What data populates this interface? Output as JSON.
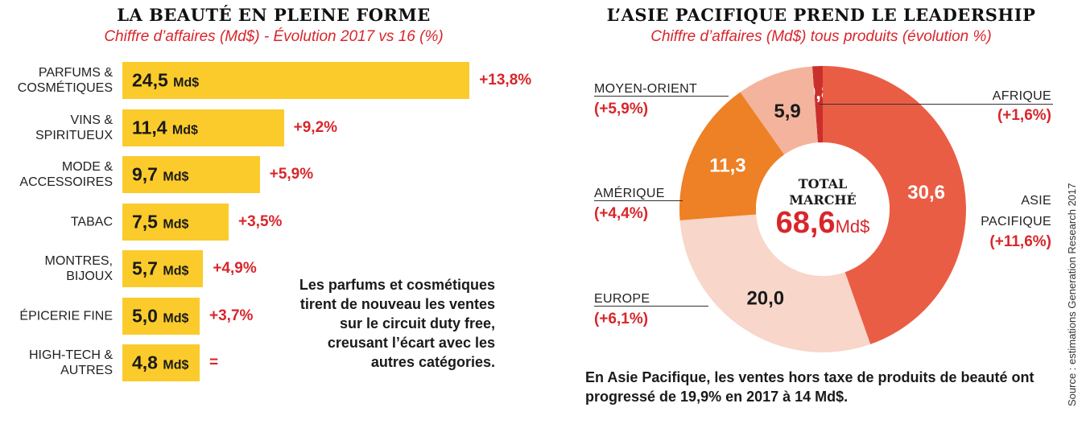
{
  "left": {
    "title": "LA BEAUTÉ EN PLEINE FORME",
    "subtitle": "Chiffre d’affaires (Md$) - Évolution 2017 vs 16 (%)",
    "note": "Les parfums et cosmétiques tirent de nouveau les ventes sur le circuit duty free, creusant l’écart avec les autres catégories."
  },
  "right": {
    "title": "L’ASIE PACIFIQUE PREND LE LEADERSHIP",
    "subtitle": "Chiffre d’affaires (Md$) tous produits (évolution %)",
    "center_line1": "TOTAL",
    "center_line2": "MARCHÉ",
    "center_value": "68,6",
    "center_unit": "Md$",
    "note": "En Asie Pacifique, les ventes hors taxe de produits de beauté ont progressé de 19,9% en 2017 à 14 Md$."
  },
  "source": "Source : estimations Generation Research 2017",
  "colors": {
    "bar": "#fbcb2c",
    "accent_red": "#d8262b"
  },
  "chart_data": [
    {
      "type": "bar",
      "orientation": "horizontal",
      "title": "LA BEAUTÉ EN PLEINE FORME",
      "subtitle": "Chiffre d’affaires (Md$) - Évolution 2017 vs 16 (%)",
      "unit": "Md$",
      "categories": [
        [
          "PARFUMS &",
          "COSMÉTIQUES"
        ],
        [
          "VINS &",
          "SPIRITUEUX"
        ],
        [
          "MODE &",
          "ACCESSOIRES"
        ],
        [
          "TABAC"
        ],
        [
          "MONTRES,",
          "BIJOUX"
        ],
        [
          "ÉPICERIE FINE"
        ],
        [
          "HIGH-TECH &",
          "AUTRES"
        ]
      ],
      "values": [
        24.5,
        11.4,
        9.7,
        7.5,
        5.7,
        5.0,
        4.8
      ],
      "value_labels": [
        "24,5",
        "11,4",
        "9,7",
        "7,5",
        "5,7",
        "5,0",
        "4,8"
      ],
      "changes": [
        "+13,8%",
        "+9,2%",
        "+5,9%",
        "+3,5%",
        "+4,9%",
        "+3,7%",
        "="
      ]
    },
    {
      "type": "pie",
      "donut": true,
      "title": "L’ASIE PACIFIQUE PREND LE LEADERSHIP",
      "subtitle": "Chiffre d’affaires (Md$) tous produits (évolution %)",
      "total": 68.6,
      "slices": [
        {
          "label": "AFRIQUE",
          "value": 0.8,
          "value_label": "0,8",
          "change": "(+1,6%)",
          "color": "#c9302c",
          "text_color": "#ffffff"
        },
        {
          "label": "ASIE PACIFIQUE",
          "label_lines": [
            "ASIE",
            "PACIFIQUE"
          ],
          "value": 30.6,
          "value_label": "30,6",
          "change": "(+11,6%)",
          "color": "#ea5d45",
          "text_color": "#ffffff"
        },
        {
          "label": "EUROPE",
          "value": 20.0,
          "value_label": "20,0",
          "change": "(+6,1%)",
          "color": "#f8d6ca",
          "text_color": "#1a1a1a"
        },
        {
          "label": "AMÉRIQUE",
          "value": 11.3,
          "value_label": "11,3",
          "change": "(+4,4%)",
          "color": "#ee8025",
          "text_color": "#ffffff"
        },
        {
          "label": "MOYEN-ORIENT",
          "value": 5.9,
          "value_label": "5,9",
          "change": "(+5,9%)",
          "color": "#f4b39c",
          "text_color": "#1a1a1a"
        }
      ]
    }
  ]
}
